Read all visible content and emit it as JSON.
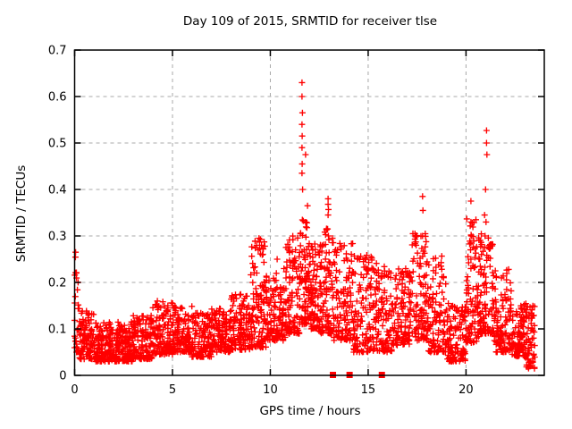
{
  "title": "Day 109 of 2015, SRMTID for receiver tlse",
  "colors": {
    "background": "#ffffff",
    "marker": "#ff0000",
    "border": "#000000",
    "grid": "#a8a8a8",
    "text": "#000000"
  },
  "chart_data": {
    "type": "scatter",
    "title": "Day 109 of 2015, SRMTID for receiver tlse",
    "xlabel": "GPS time / hours",
    "ylabel": "SRMTID / TECUs",
    "xlim": [
      0,
      24
    ],
    "ylim": [
      0,
      0.7
    ],
    "xticks": [
      0,
      5,
      10,
      15,
      20
    ],
    "xtick_labels": [
      "0",
      "5",
      "10",
      "15",
      "20"
    ],
    "yticks": [
      0,
      0.1,
      0.2,
      0.3,
      0.4,
      0.5,
      0.6,
      0.7
    ],
    "ytick_labels": [
      "0",
      "0.1",
      "0.2",
      "0.3",
      "0.4",
      "0.5",
      "0.6",
      "0.7"
    ],
    "grid": true,
    "grid_style": "dashed",
    "legend": "none",
    "marker": {
      "shape": "plus",
      "color": "#ff0000",
      "size": 7
    },
    "seed": 109,
    "y_bias": 1.7,
    "column_step": 0.045,
    "column_jitter": 0.012,
    "density_bands": [
      [
        0.0,
        0.25,
        0.05,
        0.27,
        28
      ],
      [
        0.25,
        1.0,
        0.035,
        0.14,
        95
      ],
      [
        1.0,
        2.0,
        0.03,
        0.115,
        135
      ],
      [
        2.0,
        3.0,
        0.03,
        0.115,
        135
      ],
      [
        3.0,
        4.0,
        0.035,
        0.13,
        135
      ],
      [
        4.0,
        5.0,
        0.045,
        0.16,
        130
      ],
      [
        5.0,
        6.0,
        0.05,
        0.155,
        125
      ],
      [
        6.0,
        7.0,
        0.04,
        0.135,
        120
      ],
      [
        7.0,
        8.0,
        0.05,
        0.145,
        120
      ],
      [
        8.0,
        9.0,
        0.055,
        0.175,
        120
      ],
      [
        9.0,
        9.8,
        0.06,
        0.295,
        110
      ],
      [
        9.8,
        10.8,
        0.075,
        0.23,
        125
      ],
      [
        10.8,
        11.5,
        0.09,
        0.3,
        95
      ],
      [
        11.5,
        11.95,
        0.11,
        0.335,
        75
      ],
      [
        11.95,
        12.55,
        0.1,
        0.285,
        95
      ],
      [
        12.55,
        13.25,
        0.09,
        0.32,
        95
      ],
      [
        13.25,
        14.25,
        0.075,
        0.285,
        115
      ],
      [
        14.25,
        15.25,
        0.05,
        0.26,
        115
      ],
      [
        15.25,
        16.25,
        0.05,
        0.245,
        112
      ],
      [
        16.25,
        17.25,
        0.065,
        0.23,
        112
      ],
      [
        17.25,
        18.05,
        0.075,
        0.31,
        100
      ],
      [
        18.05,
        19.0,
        0.05,
        0.26,
        110
      ],
      [
        19.0,
        20.0,
        0.03,
        0.155,
        112
      ],
      [
        20.0,
        20.65,
        0.07,
        0.34,
        85
      ],
      [
        20.65,
        21.45,
        0.09,
        0.31,
        105
      ],
      [
        21.45,
        22.35,
        0.05,
        0.23,
        115
      ],
      [
        22.35,
        23.05,
        0.04,
        0.155,
        95
      ],
      [
        23.05,
        23.55,
        0.015,
        0.155,
        65
      ]
    ],
    "outlier_points": [
      [
        0.05,
        0.265
      ],
      [
        9.38,
        0.27
      ],
      [
        9.42,
        0.295
      ],
      [
        9.45,
        0.287
      ],
      [
        9.55,
        0.28
      ],
      [
        10.35,
        0.25
      ],
      [
        11.62,
        0.63
      ],
      [
        11.62,
        0.6
      ],
      [
        11.64,
        0.565
      ],
      [
        11.62,
        0.54
      ],
      [
        11.63,
        0.515
      ],
      [
        11.62,
        0.49
      ],
      [
        11.8,
        0.475
      ],
      [
        11.63,
        0.455
      ],
      [
        11.62,
        0.435
      ],
      [
        11.65,
        0.4
      ],
      [
        11.9,
        0.365
      ],
      [
        12.93,
        0.315
      ],
      [
        12.95,
        0.38
      ],
      [
        12.95,
        0.368
      ],
      [
        12.97,
        0.357
      ],
      [
        12.95,
        0.345
      ],
      [
        12.97,
        0.3
      ],
      [
        14.45,
        0.25
      ],
      [
        17.45,
        0.28
      ],
      [
        17.78,
        0.385
      ],
      [
        17.8,
        0.355
      ],
      [
        17.78,
        0.3
      ],
      [
        20.23,
        0.27
      ],
      [
        20.25,
        0.375
      ],
      [
        20.25,
        0.33
      ],
      [
        20.27,
        0.3
      ],
      [
        20.25,
        0.285
      ],
      [
        20.25,
        0.25
      ],
      [
        20.25,
        0.23
      ],
      [
        20.95,
        0.345
      ],
      [
        20.97,
        0.3
      ],
      [
        21.0,
        0.4
      ],
      [
        21.02,
        0.33
      ],
      [
        21.05,
        0.527
      ],
      [
        21.05,
        0.5
      ],
      [
        21.07,
        0.475
      ],
      [
        23.3,
        0.02
      ]
    ],
    "zero_square_markers": [
      13.2,
      14.05,
      15.7
    ]
  }
}
